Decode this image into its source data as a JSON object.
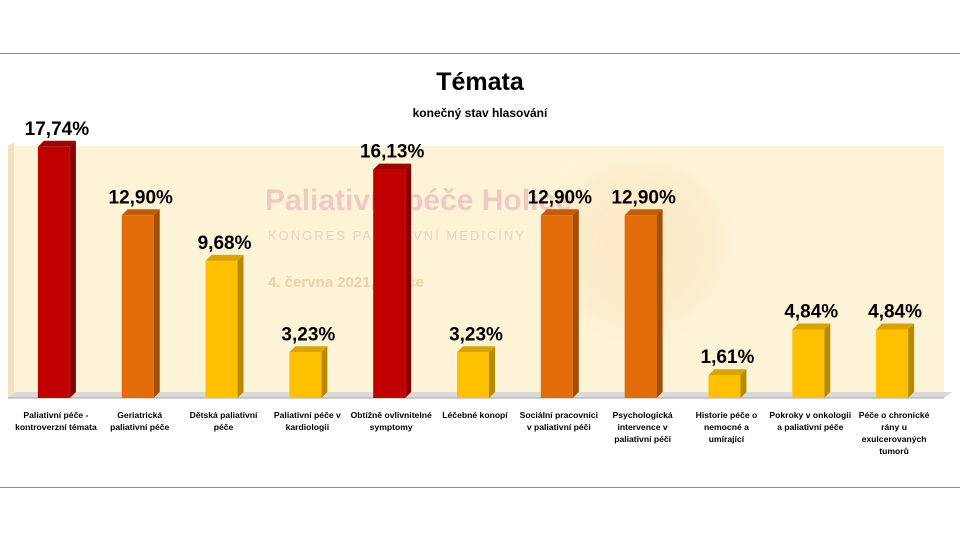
{
  "chart_data": {
    "type": "bar",
    "title": "Témata",
    "subtitle": "konečný stav hlasování",
    "categories": [
      "Paliativní péče - kontroverzní témata",
      "Geriatrická paliativní péče",
      "Dětská paliativní péče",
      "Paliativní péče v kardiologii",
      "Obtížně ovlivnitelné symptomy",
      "Léčebné konopí",
      "Sociální pracovníci v paliativní péči",
      "Psychologická intervence v paliativní péči",
      "Historie péče o nemocné a umírající",
      "Pokroky v onkologii a paliativní péče",
      "Péče o chronické rány u exulcerovaných tumorů"
    ],
    "values": [
      17.74,
      12.9,
      9.68,
      3.23,
      16.13,
      3.23,
      12.9,
      12.9,
      1.61,
      4.84,
      4.84
    ],
    "data_labels": [
      "17,74%",
      "12,90%",
      "9,68%",
      "3,23%",
      "16,13%",
      "3,23%",
      "12,90%",
      "12,90%",
      "1,61%",
      "4,84%",
      "4,84%"
    ],
    "ylim": [
      0,
      18.5
    ],
    "grid": false,
    "legend": "none",
    "bar_colors": [
      "#c00000",
      "#e36c0a",
      "#ffc000",
      "#ffc000",
      "#c00000",
      "#ffc000",
      "#e36c0a",
      "#e36c0a",
      "#ffc000",
      "#ffc000",
      "#ffc000"
    ]
  },
  "background_watermark": {
    "line1": "Paliativní péče Holice",
    "line2": "KONGRES PALIATIVNÍ MEDICÍNY",
    "line3": "4. června 2021, Holice"
  },
  "colors": {
    "plot_background": "#fdf3d6",
    "floor": "#d9d9d9"
  }
}
